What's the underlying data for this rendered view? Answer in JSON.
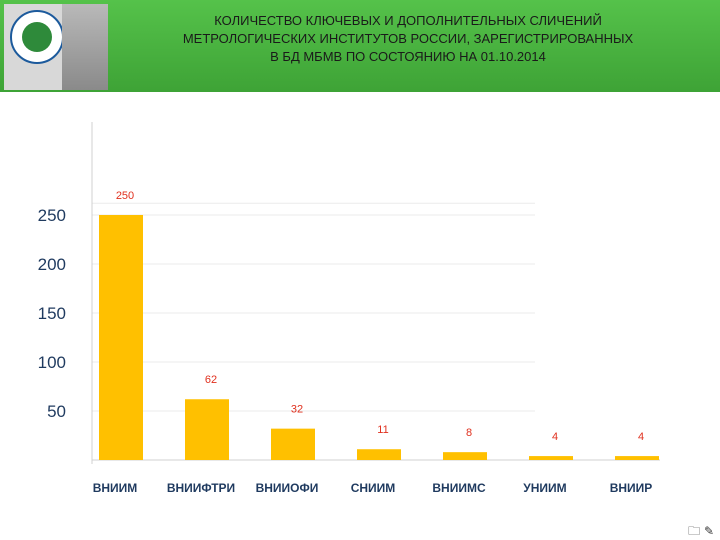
{
  "header": {
    "title_lines": [
      "КОЛИЧЕСТВО КЛЮЧЕВЫХ И ДОПОЛНИТЕЛЬНЫХ СЛИЧЕНИЙ",
      "МЕТРОЛОГИЧЕСКИХ ИНСТИТУТОВ РОССИИ, ЗАРЕГИСТРИРОВАННЫХ",
      "В БД МБМВ ПО СОСТОЯНИЮ НА 01.10.2014"
    ],
    "logo_text": "ВНИИМ",
    "banner_color": "#46ad3c"
  },
  "chart_data": {
    "type": "bar",
    "categories": [
      "ВНИИМ",
      "ВНИИФТРИ",
      "ВНИИОФИ",
      "СНИИМ",
      "ВНИИМС",
      "УНИИМ",
      "ВНИИР"
    ],
    "values": [
      250,
      62,
      32,
      11,
      8,
      4,
      4
    ],
    "data_labels": [
      "250",
      "62",
      "32",
      "11",
      "8",
      "4",
      "4"
    ],
    "y_ticks": [
      50,
      100,
      150,
      200,
      250
    ],
    "y_tick_labels": [
      "50",
      "100",
      "150",
      "200",
      "250"
    ],
    "ylim": [
      0,
      260
    ],
    "grid": true,
    "bar_color": "#ffc000",
    "label_color": "#e0301e"
  },
  "corner_glyphs": "🗀 ✎"
}
